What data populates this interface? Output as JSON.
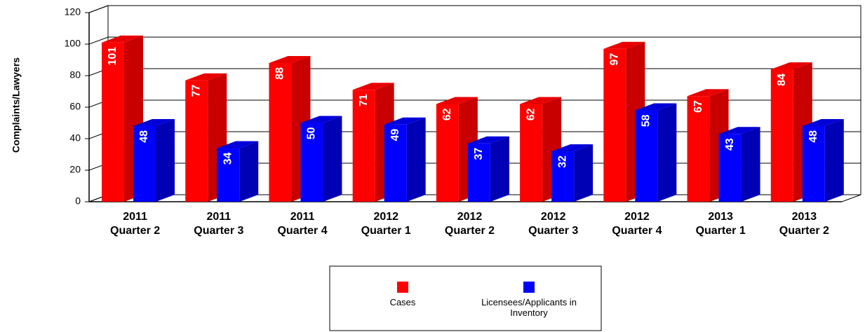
{
  "chart_data": {
    "type": "bar3d",
    "y_label": "Complaints/Lawyers",
    "categories": [
      "2011 Quarter 2",
      "2011 Quarter 3",
      "2011 Quarter 4",
      "2012 Quarter 1",
      "2012 Quarter 2",
      "2012 Quarter 3",
      "2012 Quarter 4",
      "2013 Quarter 1",
      "2013 Quarter 2"
    ],
    "series": [
      {
        "name": "Cases",
        "color": "#ff0000",
        "values": [
          101,
          77,
          88,
          71,
          62,
          62,
          97,
          67,
          84
        ]
      },
      {
        "name": "Licensees/Applicants in Inventory",
        "color": "#0000ff",
        "values": [
          48,
          34,
          50,
          49,
          37,
          32,
          58,
          43,
          48
        ]
      }
    ],
    "ylim": [
      0,
      120
    ],
    "yticks": [
      0,
      20,
      40,
      60,
      80,
      100,
      120
    ],
    "grid": true,
    "legend": "bottom"
  }
}
